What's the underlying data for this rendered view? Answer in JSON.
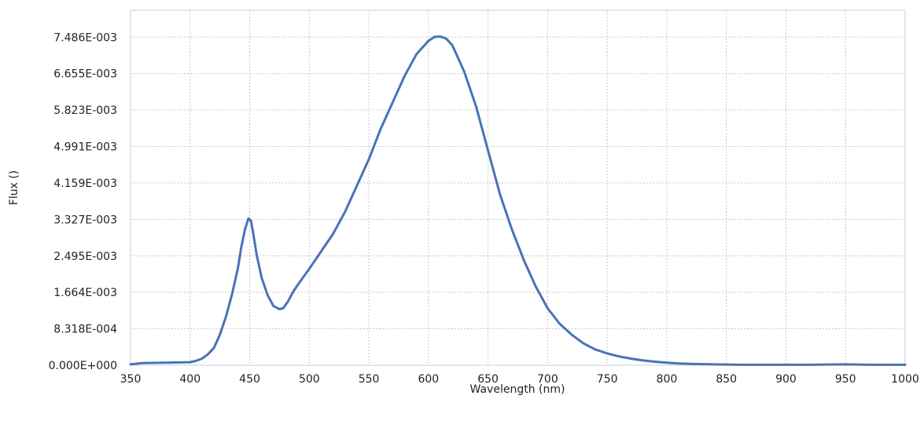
{
  "chart_data": {
    "type": "line",
    "title": "",
    "xlabel": "Wavelength (nm)",
    "ylabel": "Flux ()",
    "xlim": [
      350,
      1000
    ],
    "ylim": [
      0,
      0.0081
    ],
    "x_ticks": [
      350,
      400,
      450,
      500,
      550,
      600,
      650,
      700,
      750,
      800,
      850,
      900,
      950,
      1000
    ],
    "x_tick_labels": [
      "350",
      "400",
      "450",
      "500",
      "550",
      "600",
      "650",
      "700",
      "750",
      "800",
      "850",
      "900",
      "950",
      "1000"
    ],
    "y_ticks": [
      0,
      0.0008318,
      0.001664,
      0.002495,
      0.003327,
      0.004159,
      0.004991,
      0.005823,
      0.006655,
      0.007486
    ],
    "y_tick_labels": [
      "0.000E+000",
      "8.318E-004",
      "1.664E-003",
      "2.495E-003",
      "3.327E-003",
      "4.159E-003",
      "4.991E-003",
      "5.823E-003",
      "6.655E-003",
      "7.486E-003"
    ],
    "grid": true,
    "legend": "none",
    "line_color": "#4a72b8",
    "series": [
      {
        "x": [
          350,
          360,
          380,
          400,
          405,
          410,
          415,
          420,
          425,
          430,
          435,
          440,
          443,
          446,
          449,
          451,
          453,
          456,
          460,
          465,
          470,
          475,
          478,
          482,
          487,
          492,
          500,
          510,
          520,
          530,
          540,
          550,
          560,
          570,
          580,
          590,
          600,
          605,
          610,
          615,
          620,
          630,
          640,
          650,
          660,
          670,
          680,
          690,
          700,
          710,
          720,
          730,
          740,
          750,
          760,
          770,
          780,
          790,
          800,
          810,
          820,
          840,
          860,
          880,
          900,
          920,
          950,
          970,
          1000
        ],
        "y": [
          2e-05,
          5e-05,
          6e-05,
          7e-05,
          0.0001,
          0.00015,
          0.00025,
          0.0004,
          0.0007,
          0.0011,
          0.0016,
          0.0022,
          0.0027,
          0.0031,
          0.00335,
          0.0033,
          0.003,
          0.0025,
          0.002,
          0.0016,
          0.00135,
          0.00128,
          0.0013,
          0.00145,
          0.0017,
          0.0019,
          0.0022,
          0.0026,
          0.003,
          0.0035,
          0.0041,
          0.0047,
          0.0054,
          0.006,
          0.0066,
          0.0071,
          0.0074,
          0.00749,
          0.0075,
          0.00745,
          0.0073,
          0.0067,
          0.0059,
          0.0049,
          0.0039,
          0.0031,
          0.0024,
          0.0018,
          0.0013,
          0.00095,
          0.0007,
          0.0005,
          0.00036,
          0.00027,
          0.0002,
          0.00015,
          0.00011,
          8e-05,
          6e-05,
          4e-05,
          3e-05,
          2e-05,
          1e-05,
          1e-05,
          1e-05,
          1e-05,
          2e-05,
          1e-05,
          1e-05
        ]
      }
    ]
  }
}
